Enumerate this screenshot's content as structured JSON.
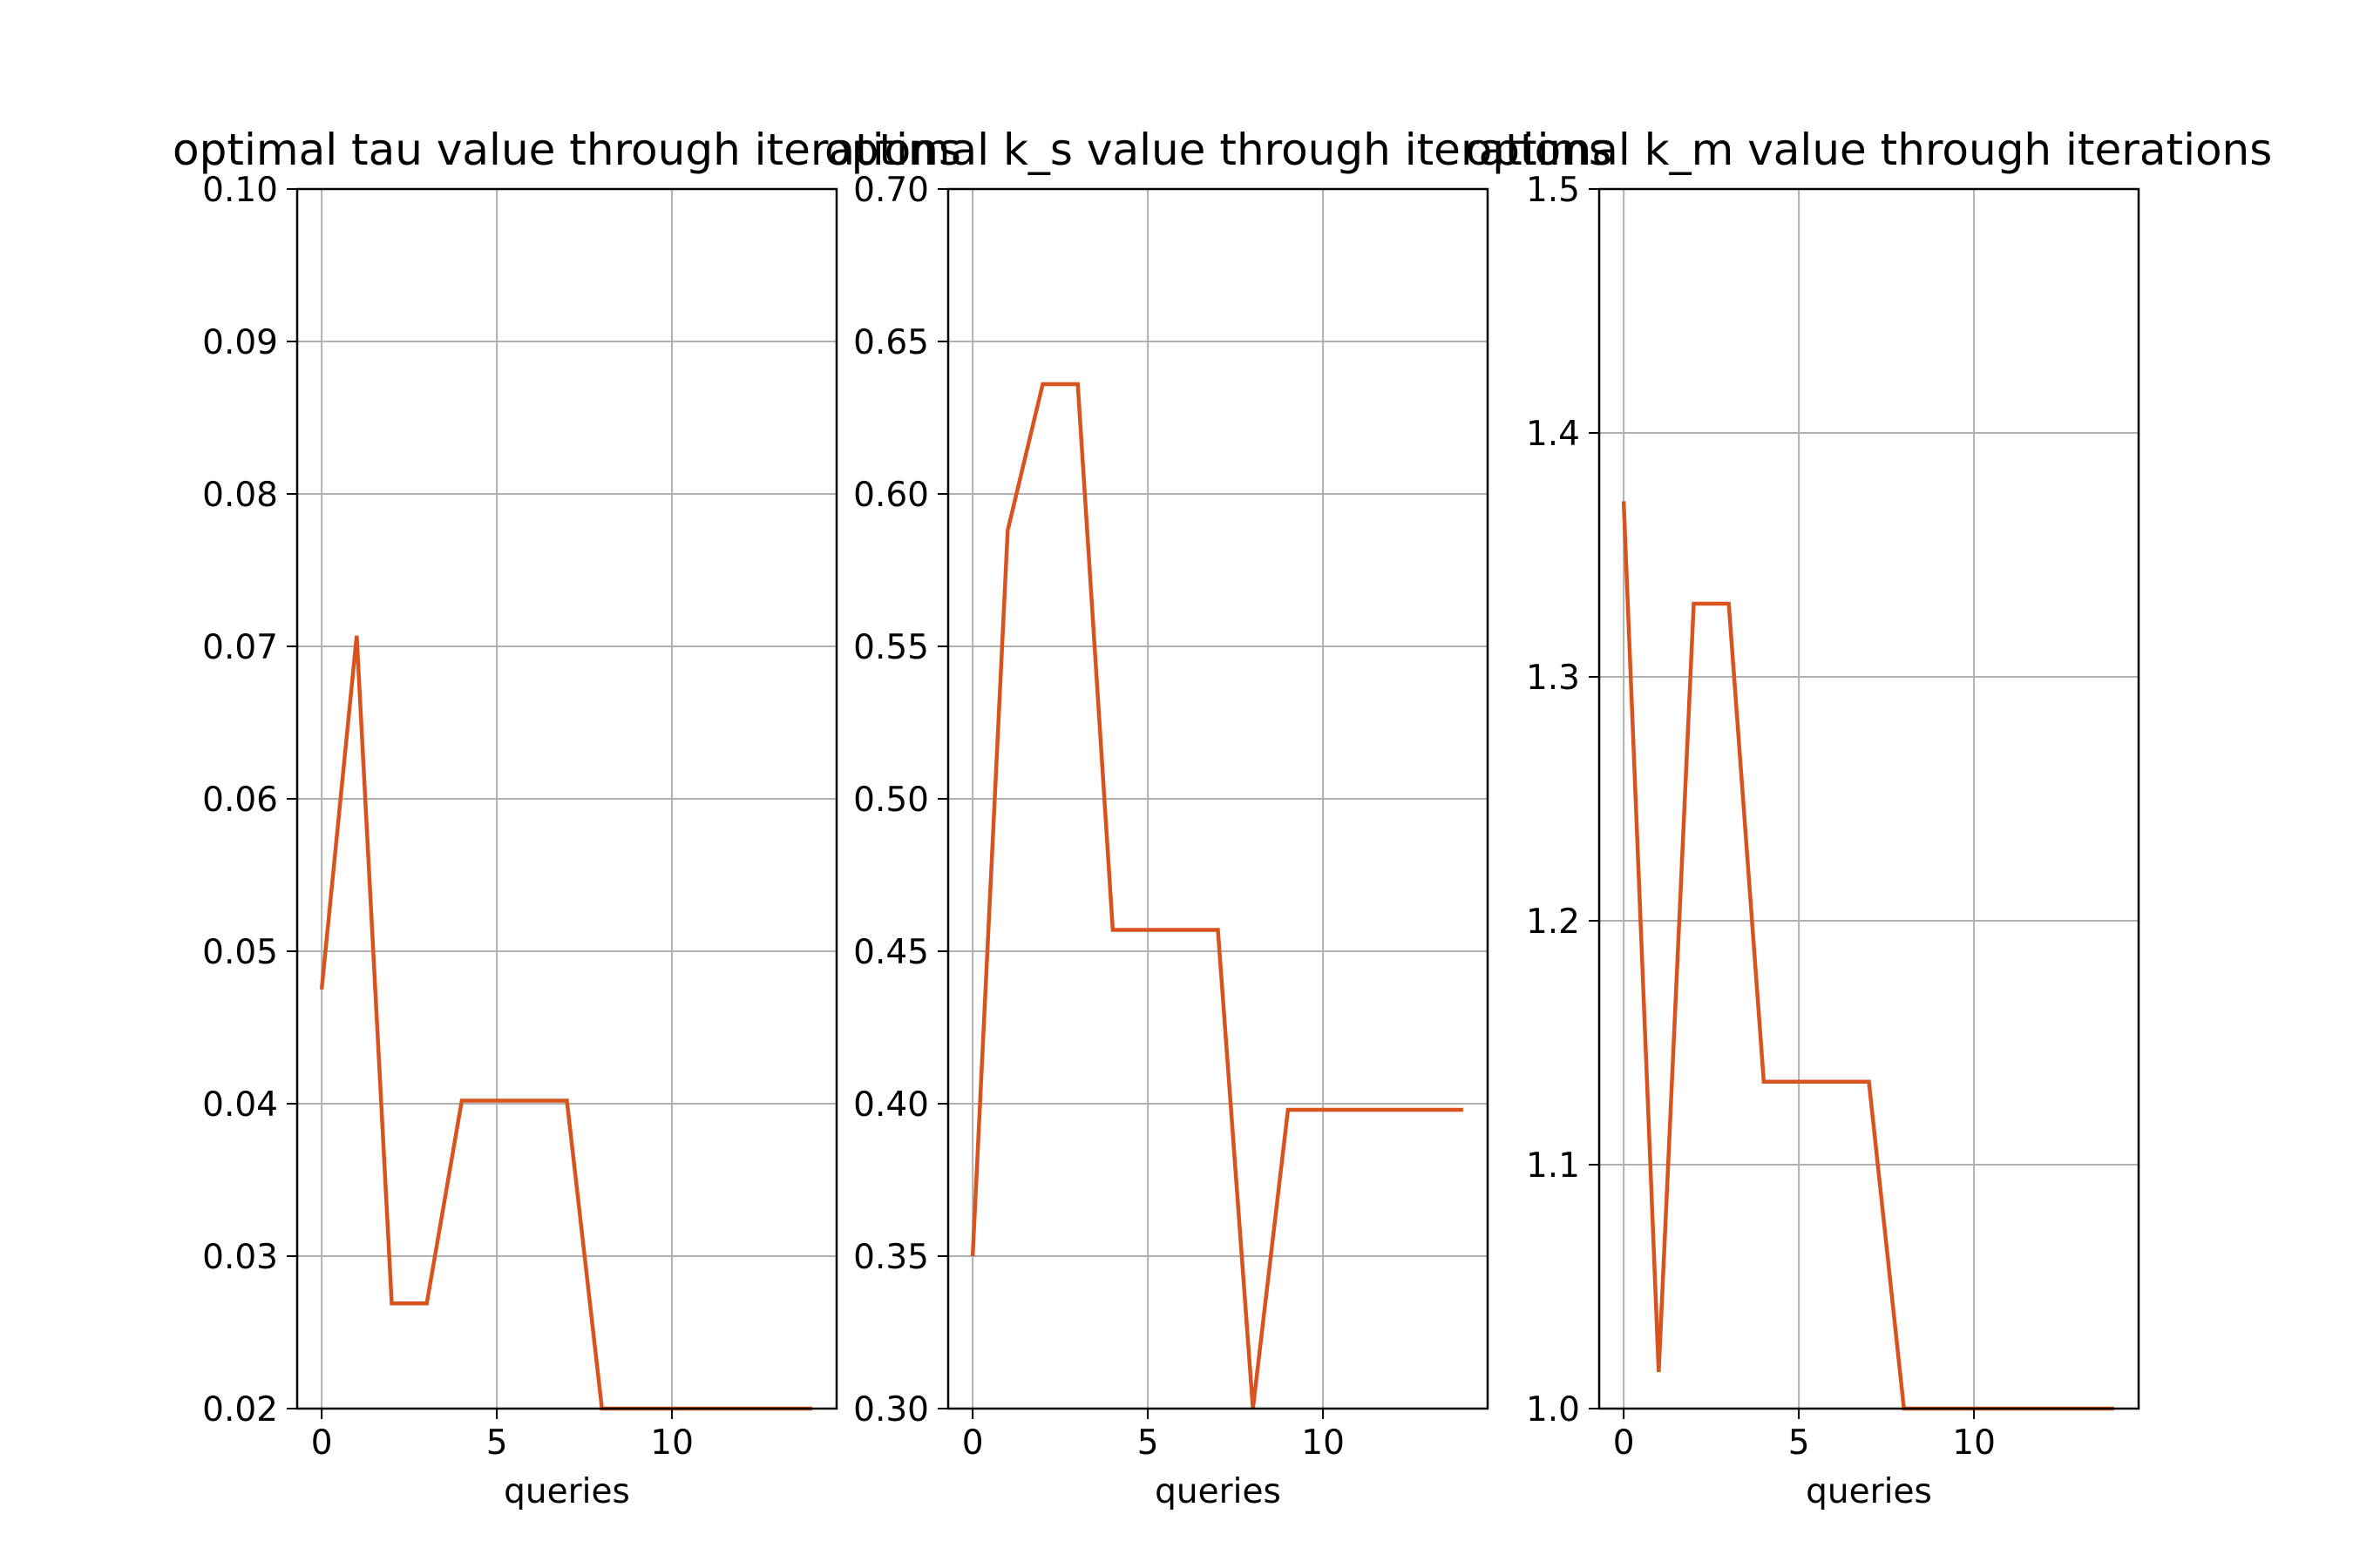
{
  "chart_data": [
    {
      "type": "line",
      "title": "optimal tau value through iterations",
      "xlabel": "queries",
      "ylabel": "",
      "xlim": [
        -0.7,
        14.7
      ],
      "ylim": [
        0.02,
        0.1
      ],
      "xticks": [
        0,
        5,
        10
      ],
      "xtick_labels": [
        "0",
        "5",
        "10"
      ],
      "yticks": [
        0.02,
        0.03,
        0.04,
        0.05,
        0.06,
        0.07,
        0.08,
        0.09,
        0.1
      ],
      "ytick_labels": [
        "0.02",
        "0.03",
        "0.04",
        "0.05",
        "0.06",
        "0.07",
        "0.08",
        "0.09",
        "0.10"
      ],
      "grid": true,
      "series": [
        {
          "color": "#d9531e",
          "x": [
            0,
            1,
            2,
            3,
            4,
            5,
            6,
            7,
            8,
            9,
            10,
            11,
            12,
            13,
            14
          ],
          "y": [
            0.0475,
            0.0707,
            0.0269,
            0.0269,
            0.0402,
            0.0402,
            0.0402,
            0.0402,
            0.02,
            0.02,
            0.02,
            0.02,
            0.02,
            0.02,
            0.02
          ]
        }
      ]
    },
    {
      "type": "line",
      "title": "optimal k_s value through iterations",
      "xlabel": "queries",
      "ylabel": "",
      "xlim": [
        -0.7,
        14.7
      ],
      "ylim": [
        0.3,
        0.7
      ],
      "xticks": [
        0,
        5,
        10
      ],
      "xtick_labels": [
        "0",
        "5",
        "10"
      ],
      "yticks": [
        0.3,
        0.35,
        0.4,
        0.45,
        0.5,
        0.55,
        0.6,
        0.65,
        0.7
      ],
      "ytick_labels": [
        "0.30",
        "0.35",
        "0.40",
        "0.45",
        "0.50",
        "0.55",
        "0.60",
        "0.65",
        "0.70"
      ],
      "grid": true,
      "series": [
        {
          "color": "#d9531e",
          "x": [
            0,
            1,
            2,
            3,
            4,
            5,
            6,
            7,
            8,
            9,
            10,
            11,
            12,
            13,
            14
          ],
          "y": [
            0.35,
            0.588,
            0.636,
            0.636,
            0.457,
            0.457,
            0.457,
            0.457,
            0.3,
            0.398,
            0.398,
            0.398,
            0.398,
            0.398,
            0.398
          ]
        }
      ]
    },
    {
      "type": "line",
      "title": "optimal k_m value through iterations",
      "xlabel": "queries",
      "ylabel": "",
      "xlim": [
        -0.7,
        14.7
      ],
      "ylim": [
        1.0,
        1.5
      ],
      "xticks": [
        0,
        5,
        10
      ],
      "xtick_labels": [
        "0",
        "5",
        "10"
      ],
      "yticks": [
        1.0,
        1.1,
        1.2,
        1.3,
        1.4,
        1.5
      ],
      "ytick_labels": [
        "1.0",
        "1.1",
        "1.2",
        "1.3",
        "1.4",
        "1.5"
      ],
      "grid": true,
      "series": [
        {
          "color": "#d9531e",
          "x": [
            0,
            1,
            2,
            3,
            4,
            5,
            6,
            7,
            8,
            9,
            10,
            11,
            12,
            13,
            14
          ],
          "y": [
            1.372,
            1.015,
            1.33,
            1.33,
            1.134,
            1.134,
            1.134,
            1.134,
            1.0,
            1.0,
            1.0,
            1.0,
            1.0,
            1.0,
            1.0
          ]
        }
      ]
    }
  ]
}
